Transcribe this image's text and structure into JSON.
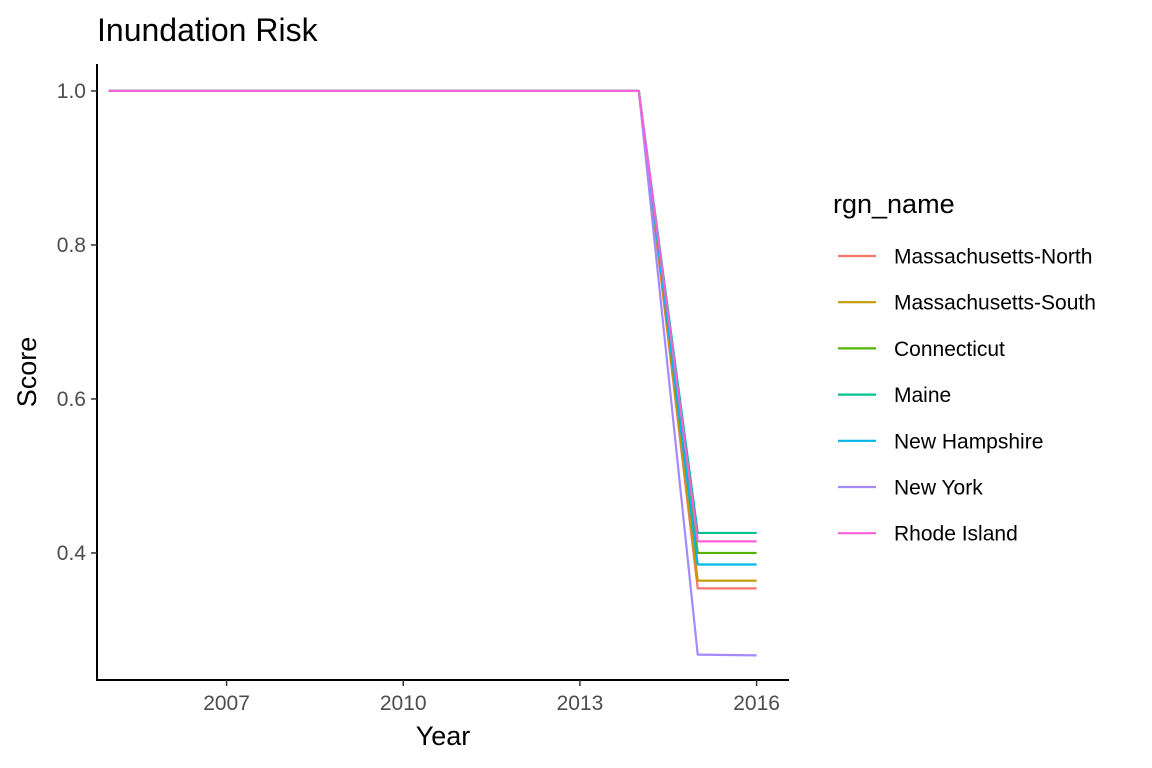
{
  "chart_data": {
    "type": "line",
    "title": "Inundation Risk",
    "xlabel": "Year",
    "ylabel": "Score",
    "legend_title": "rgn_name",
    "legend_position": "right",
    "grid": false,
    "xlim": [
      2004.8,
      2016.55
    ],
    "ylim": [
      0.235,
      1.035
    ],
    "x_ticks": [
      2007,
      2010,
      2013,
      2016
    ],
    "y_ticks": [
      0.4,
      0.6,
      0.8,
      1.0
    ],
    "y_tick_labels": [
      "0.4",
      "0.6",
      "0.8",
      "1.0"
    ],
    "x": [
      2005,
      2006,
      2007,
      2008,
      2009,
      2010,
      2011,
      2012,
      2013,
      2014,
      2015,
      2016
    ],
    "series": [
      {
        "name": "Massachusetts-North",
        "color": "#F8766D",
        "values": [
          1,
          1,
          1,
          1,
          1,
          1,
          1,
          1,
          1,
          1,
          0.354,
          0.354
        ]
      },
      {
        "name": "Massachusetts-South",
        "color": "#C49A00",
        "values": [
          1,
          1,
          1,
          1,
          1,
          1,
          1,
          1,
          1,
          1,
          0.364,
          0.364
        ]
      },
      {
        "name": "Connecticut",
        "color": "#53B400",
        "values": [
          1,
          1,
          1,
          1,
          1,
          1,
          1,
          1,
          1,
          1,
          0.4,
          0.4
        ]
      },
      {
        "name": "Maine",
        "color": "#00C094",
        "values": [
          1,
          1,
          1,
          1,
          1,
          1,
          1,
          1,
          1,
          1,
          0.426,
          0.426
        ]
      },
      {
        "name": "New Hampshire",
        "color": "#00B6EB",
        "values": [
          1,
          1,
          1,
          1,
          1,
          1,
          1,
          1,
          1,
          1,
          0.385,
          0.385
        ]
      },
      {
        "name": "New York",
        "color": "#A58AFF",
        "values": [
          1,
          1,
          1,
          1,
          1,
          1,
          1,
          1,
          1,
          1,
          0.268,
          0.267
        ]
      },
      {
        "name": "Rhode Island",
        "color": "#FB61D7",
        "values": [
          1,
          1,
          1,
          1,
          1,
          1,
          1,
          1,
          1,
          1,
          0.415,
          0.415
        ]
      }
    ]
  }
}
